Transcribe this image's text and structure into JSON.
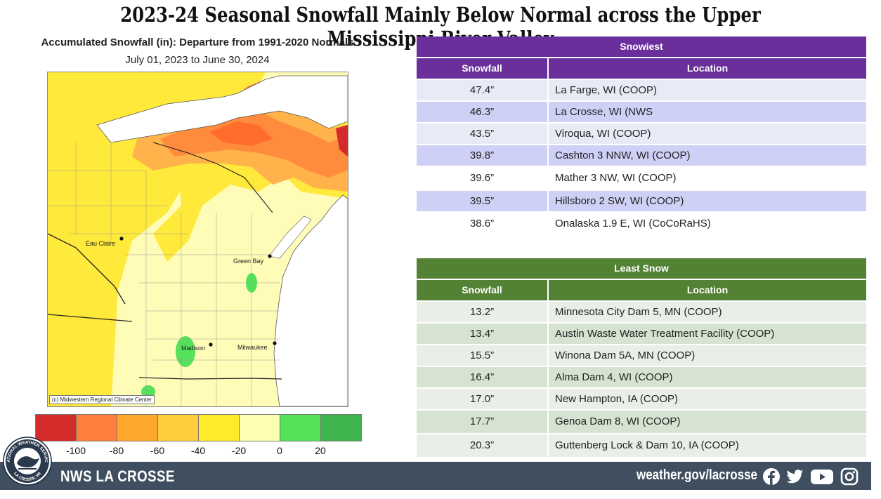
{
  "title": "2023-24 Seasonal Snowfall Mainly Below Normal across the Upper Mississippi River Valley",
  "map": {
    "title": "Accumulated Snowfall (in): Departure from 1991-2020 Normals",
    "subtitle": "July 01, 2023 to June 30, 2024",
    "credit": "(c) Midwestern Regional Climate Center",
    "cities": [
      "Eau Claire",
      "Green Bay",
      "Madison",
      "Milwaukee"
    ]
  },
  "legend": {
    "colors": [
      "#d42b2b",
      "#ff7f3a",
      "#ffa62d",
      "#ffcc3c",
      "#ffeb2a",
      "#ffffb2",
      "#55e25a",
      "#3fb44c"
    ],
    "labels": [
      "-100",
      "-80",
      "-60",
      "-40",
      "-20",
      "0",
      "20"
    ]
  },
  "snowiest": {
    "heading": "Snowiest",
    "col_snowfall": "Snowfall",
    "col_location": "Location",
    "rows": [
      {
        "snowfall": "47.4”",
        "location": "La Farge, WI (COOP)"
      },
      {
        "snowfall": "46.3”",
        "location": "La Crosse, WI (NWS"
      },
      {
        "snowfall": "43.5”",
        "location": "Viroqua, WI (COOP)"
      },
      {
        "snowfall": "39.8”",
        "location": "Cashton 3 NNW, WI (COOP)"
      },
      {
        "snowfall": "39.6”",
        "location": "Mather 3 NW, WI (COOP)"
      },
      {
        "snowfall": "39.5”",
        "location": "Hillsboro 2 SW, WI (COOP)"
      },
      {
        "snowfall": "38.6”",
        "location": "Onalaska 1.9 E, WI (CoCoRaHS)"
      }
    ]
  },
  "least": {
    "heading": "Least Snow",
    "col_snowfall": "Snowfall",
    "col_location": "Location",
    "rows": [
      {
        "snowfall": "13.2”",
        "location": "Minnesota City Dam 5, MN (COOP)"
      },
      {
        "snowfall": "13.4”",
        "location": "Austin Waste Water Treatment Facility (COOP)"
      },
      {
        "snowfall": "15.5”",
        "location": "Winona Dam 5A, MN (COOP)"
      },
      {
        "snowfall": "16.4”",
        "location": "Alma Dam 4, WI (COOP)"
      },
      {
        "snowfall": "17.0”",
        "location": "New Hampton, IA (COOP)"
      },
      {
        "snowfall": "17.7”",
        "location": "Genoa Dam 8, WI (COOP)"
      },
      {
        "snowfall": "20.3”",
        "location": "Guttenberg Lock & Dam 10, IA (COOP)"
      }
    ]
  },
  "footer": {
    "name": "NWS LA CROSSE",
    "url": "weather.gov/lacrosse",
    "logo_text_top": "NATIONAL WEATHER SERVICE",
    "logo_text_bottom": "LA CROSSE, WI",
    "social_icons": [
      "facebook-icon",
      "twitter-icon",
      "youtube-icon",
      "instagram-icon"
    ]
  }
}
